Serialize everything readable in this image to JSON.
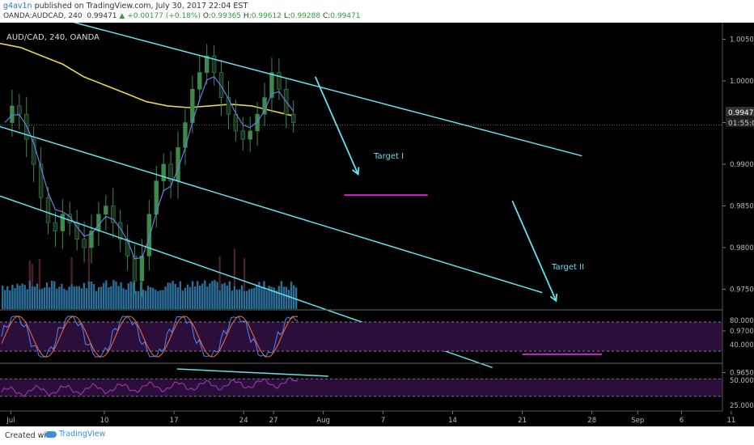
{
  "header": {
    "user": "g4av1n",
    "published": "published on TradingView.com, July 30, 2017 22:04 EST",
    "symbol": "OANDA:AUDCAD, 240",
    "last": "0.99471",
    "change": "▲ +0.00177 (+0.18%)",
    "open_label": "O:",
    "open": "0.99365",
    "high_label": "H:",
    "high": "0.99612",
    "low_label": "L:",
    "low": "0.99288",
    "close_label": "C:",
    "close": "0.99471"
  },
  "chart_label": "AUD/CAD, 240, OANDA",
  "price_tags": {
    "last": "0.99471",
    "countdown": "01:55:09"
  },
  "annotations": {
    "target1": "Target I",
    "target2": "Target II"
  },
  "footer": {
    "created": "Created with",
    "brand": "TradingView"
  },
  "colors": {
    "channel": "#5fe3f0",
    "target": "#d620d6",
    "ma": "#e8d84a",
    "ema": "#6a7de6",
    "candle": "#3d8b4a",
    "stoch_k": "#4d7cf0",
    "stoch_d": "#e8673a",
    "rsi": "#9c36b5",
    "indicator_bg": "#2b0f3a",
    "volume": "#2a6f9a"
  },
  "chart_data": [
    {
      "type": "candlestick",
      "title": "AUD/CAD, 240, OANDA",
      "y_ticks": [
        "1.00500",
        "1.00000",
        "0.99500",
        "0.99000",
        "0.98500",
        "0.98000",
        "0.97500",
        "0.97000",
        "0.96500"
      ],
      "ylim": [
        0.963,
        1.009
      ],
      "x_ticks": [
        "Jul",
        "10",
        "17",
        "24",
        "27",
        "Aug",
        "7",
        "14",
        "21",
        "28",
        "Sep",
        "6",
        "11"
      ],
      "last_price": 0.99471,
      "close_series": [
        0.995,
        0.997,
        0.996,
        0.993,
        0.99,
        0.986,
        0.983,
        0.982,
        0.984,
        0.983,
        0.981,
        0.98,
        0.982,
        0.984,
        0.985,
        0.983,
        0.981,
        0.979,
        0.976,
        0.979,
        0.984,
        0.988,
        0.99,
        0.988,
        0.992,
        0.995,
        0.999,
        1.001,
        1.003,
        1.001,
        0.998,
        0.996,
        0.994,
        0.993,
        0.994,
        0.996,
        0.998,
        1.001,
        0.999,
        0.996,
        0.995
      ],
      "moving_average": [
        1.0045,
        1.004,
        1.003,
        1.002,
        1.0005,
        0.9995,
        0.9985,
        0.9975,
        0.997,
        0.9968,
        0.997,
        0.9972,
        0.997,
        0.9964,
        0.9958
      ],
      "channel_lines": [
        {
          "start": [
            "Jun 30",
            1.0092
          ],
          "end": [
            "Aug 27",
            0.991
          ]
        },
        {
          "start": [
            "Jun 29",
            0.9947
          ],
          "end": [
            "Aug 23",
            0.9746
          ]
        },
        {
          "start": [
            "Jun 29",
            0.9864
          ],
          "end": [
            "Aug 18",
            0.9656
          ]
        }
      ],
      "target_levels": [
        {
          "label": "Target I",
          "value": 0.9863
        },
        {
          "label": "Target II",
          "value": 0.9672
        }
      ]
    },
    {
      "type": "line",
      "title": "",
      "y_ticks": [
        "80.0000",
        "40.0000"
      ],
      "upper_band": 80,
      "lower_band": 20
    },
    {
      "type": "line",
      "title": "",
      "y_ticks": [
        "50.0000",
        "25.0000"
      ],
      "upper_band": 70,
      "lower_band": 30
    }
  ]
}
